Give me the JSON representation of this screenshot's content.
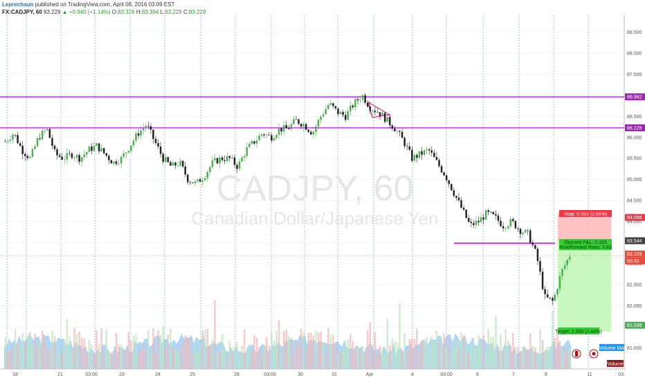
{
  "header": {
    "author": "Leprechaun",
    "published": "published on TradingView.com, April 08, 2016 03:09 EST",
    "symbol": "FX:CADJPY, 60",
    "last": "83.229",
    "change": "+0.940 (+1.14%)",
    "o_label": "O:",
    "o_value": "83.326",
    "h_label": "H:",
    "h_value": "83.394",
    "l_label": "L:",
    "l_value": "83.229",
    "c_label": "C:",
    "c_value": "83.229"
  },
  "watermark": {
    "symbol": "CADJPY, 60",
    "name": "Canadian Dollar/Japanese Yen"
  },
  "chart_data": {
    "type": "candlestick",
    "price_axis": {
      "min": 80.5,
      "max": 88.9,
      "ticks": [
        "88.500",
        "88.000",
        "87.500",
        "87.000",
        "86.500",
        "86.000",
        "85.500",
        "85.000",
        "84.500",
        "84.000",
        "83.500",
        "83.000",
        "82.500",
        "82.000",
        "81.500",
        "81.000"
      ]
    },
    "time_axis": [
      "18",
      "21",
      "03:00",
      "23",
      "24",
      "25",
      "28",
      "03:00",
      "30",
      "31",
      "Apr",
      "4",
      "03:00",
      "6",
      "7",
      "8",
      "11",
      "03:"
    ],
    "close_series": [
      85.9,
      86.1,
      85.7,
      85.5,
      86.0,
      86.2,
      85.6,
      85.5,
      85.6,
      85.5,
      85.7,
      85.8,
      85.6,
      85.4,
      85.5,
      85.8,
      86.1,
      86.3,
      85.9,
      85.5,
      85.3,
      85.4,
      85.0,
      84.9,
      85.1,
      85.4,
      85.5,
      85.5,
      85.3,
      85.7,
      85.9,
      86.1,
      86.0,
      86.2,
      86.2,
      86.4,
      86.3,
      86.1,
      86.5,
      86.8,
      86.6,
      86.5,
      86.8,
      87.0,
      86.7,
      86.6,
      86.4,
      86.2,
      85.9,
      85.5,
      85.6,
      85.7,
      85.4,
      85.1,
      84.7,
      84.3,
      83.9,
      84.0,
      84.2,
      84.1,
      83.9,
      84.0,
      83.8,
      83.7,
      83.2,
      82.2,
      82.1,
      82.8,
      83.2
    ],
    "horizontal_lines": [
      86.962,
      86.226
    ],
    "axis_badges": [
      {
        "value": "86.962",
        "color": "#9c27b0"
      },
      {
        "value": "86.226",
        "color": "#9c27b0"
      },
      {
        "value": "84.098",
        "color": "#f23645"
      },
      {
        "value": "83.544",
        "color": "#444444"
      },
      {
        "value": "83.229",
        "color": "#e74c3c"
      },
      {
        "value": "50:33",
        "color": "#e74c3c"
      },
      {
        "value": "81.538",
        "color": "#4caf50"
      }
    ],
    "position_tool": {
      "stop_text": "Stop: 0.553 (0.66%)",
      "opened_pl": "Opened P&L: 0.315",
      "risk_reward": "Risk/Reward Ratio: 3.63",
      "target_text": "Target: 2.006 (2.40%)"
    },
    "volume_label": "Volume MA",
    "volume_badge": "Volume"
  },
  "colors": {
    "up": "#4caf50",
    "down": "#222222",
    "level_line": "#c000ff",
    "stop_zone": "#ff6b6b",
    "target_zone": "#7cf07c",
    "volume_area": "#6fb6ea"
  }
}
